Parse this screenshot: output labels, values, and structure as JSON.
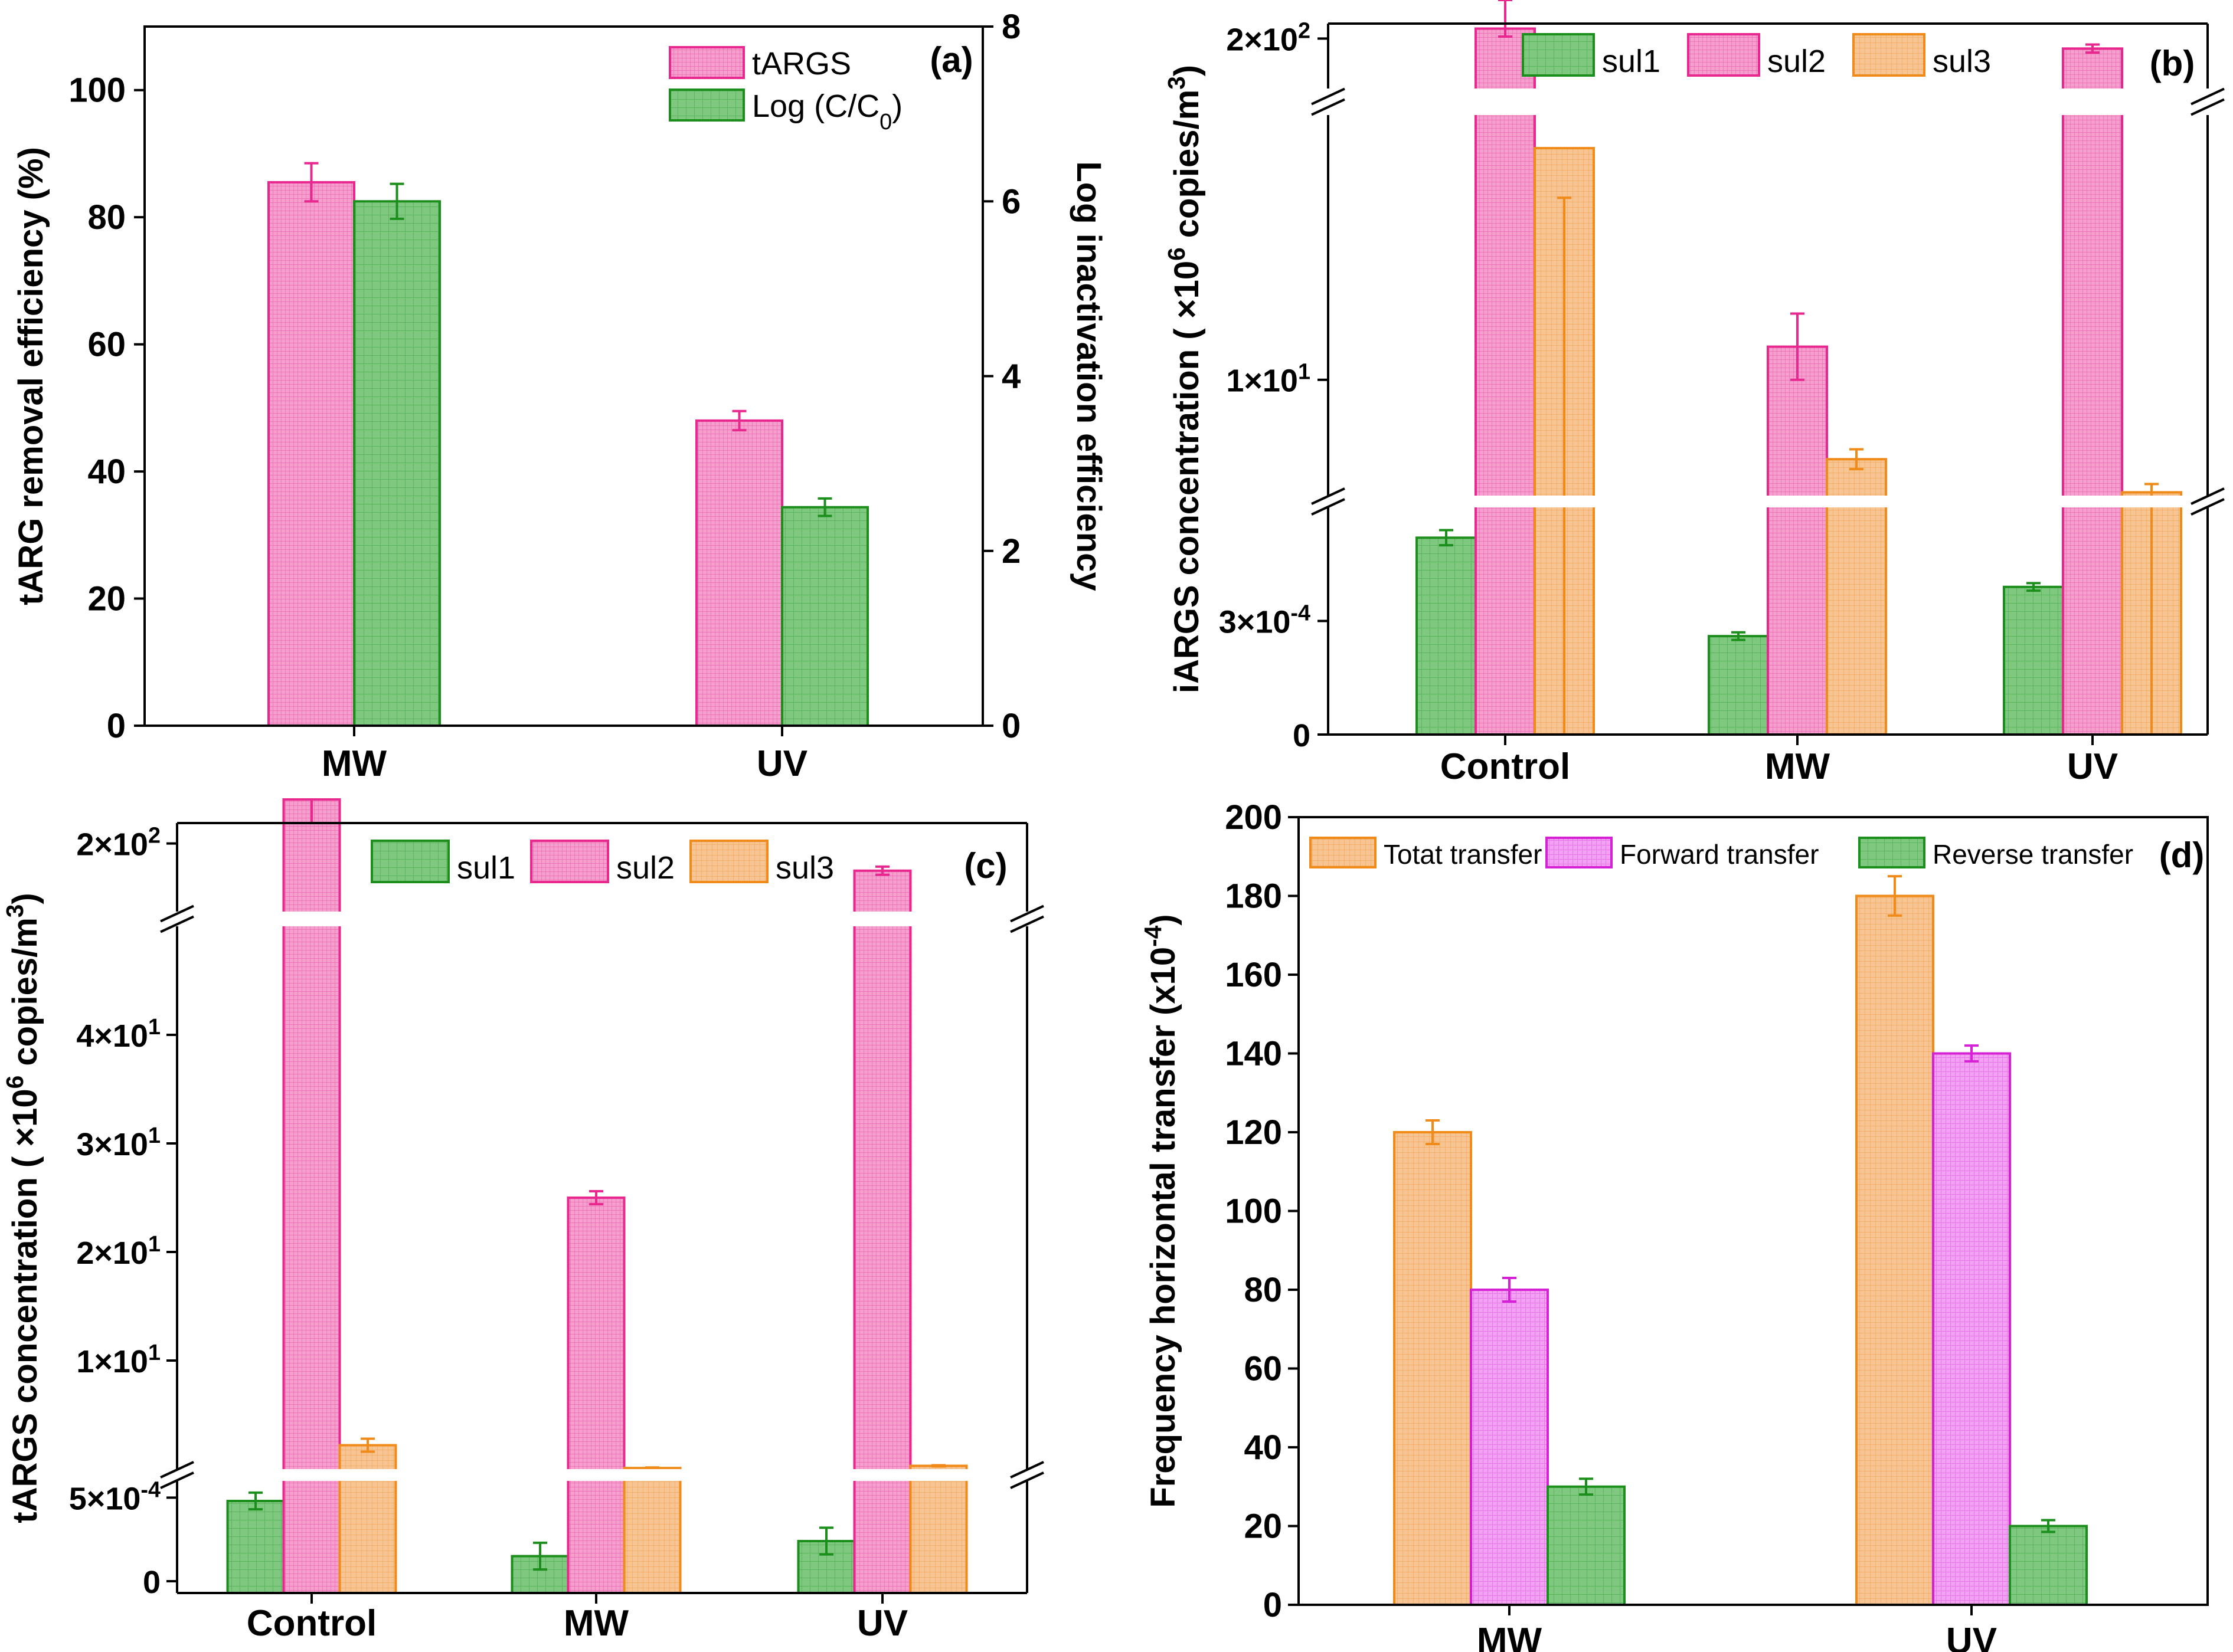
{
  "figure": {
    "panels": [
      "a",
      "b",
      "c",
      "d"
    ]
  },
  "colors": {
    "pink_fill": "#f59fce",
    "pink_edge": "#e8278f",
    "green_fill": "#7fc87f",
    "green_edge": "#1c8e1c",
    "orange_fill": "#f7c593",
    "orange_edge": "#f08a18",
    "magenta_fill": "#f3a2f3",
    "magenta_edge": "#d520d5"
  },
  "chart_data": [
    {
      "panel": "a",
      "label": "(a)",
      "type": "bar",
      "categories": [
        "MW",
        "UV"
      ],
      "ylabel": "tARG removal efficiency (%)",
      "y2label": "Log inactivation efficiency",
      "ylim": [
        0,
        110
      ],
      "y2lim": [
        0,
        8
      ],
      "yticks": [
        0,
        20,
        40,
        60,
        80,
        100
      ],
      "y2ticks": [
        0,
        2,
        4,
        6,
        8
      ],
      "series": [
        {
          "name": "tARGS",
          "axis": "left",
          "values": [
            85.5,
            48
          ],
          "errors": [
            3,
            1.5
          ],
          "fill": "#f59fce",
          "edge": "#e8278f"
        },
        {
          "name": "Log (C/C0)",
          "legend_main": "Log (C/C",
          "legend_sub": "0",
          "legend_end": ")",
          "axis": "right",
          "values": [
            6.0,
            2.5
          ],
          "errors": [
            0.2,
            0.1
          ],
          "fill": "#7fc87f",
          "edge": "#1c8e1c"
        }
      ]
    },
    {
      "panel": "b",
      "label": "(b)",
      "type": "bar",
      "categories": [
        "Control",
        "MW",
        "UV"
      ],
      "ylabel_main": "iARGS concentration ( ×10",
      "ylabel_sup": "6",
      "ylabel_end": " copies/m",
      "ylabel_sup2": "3",
      "ylabel_close": ")",
      "broken_axis": true,
      "yticks": [
        {
          "main": "0",
          "sup": "",
          "value": 0
        },
        {
          "main": "3×10",
          "sup": "-4",
          "value": 0.0003
        },
        {
          "main": "1×10",
          "sup": "1",
          "value": 10
        },
        {
          "main": "2×10",
          "sup": "2",
          "value": 200
        }
      ],
      "series": [
        {
          "name": "sul1",
          "values": [
            0.00052,
            0.00026,
            0.00039
          ],
          "errors": [
            2e-05,
            1e-05,
            1e-05
          ],
          "fill": "#7fc87f",
          "edge": "#1c8e1c"
        },
        {
          "name": "sul2",
          "values": [
            210,
            12,
            190
          ],
          "errors": [
            8,
            2,
            4
          ],
          "fill": "#f59fce",
          "edge": "#e8278f"
        },
        {
          "name": "sul3",
          "values": [
            24,
            5.2,
            3.2
          ],
          "errors": [
            3,
            0.6,
            0.5
          ],
          "fill": "#f7c593",
          "edge": "#f08a18"
        }
      ]
    },
    {
      "panel": "c",
      "label": "(c)",
      "type": "bar",
      "categories": [
        "Control",
        "MW",
        "UV"
      ],
      "ylabel_main": "tARGS concentration ( ×10",
      "ylabel_sup": "6",
      "ylabel_end": " copies/m",
      "ylabel_sup2": "3",
      "ylabel_close": ")",
      "broken_axis": true,
      "yticks": [
        {
          "main": "0",
          "sup": "",
          "value": 0
        },
        {
          "main": "5×10",
          "sup": "-4",
          "value": 0.0005
        },
        {
          "main": "1×10",
          "sup": "1",
          "value": 10
        },
        {
          "main": "2×10",
          "sup": "1",
          "value": 20
        },
        {
          "main": "3×10",
          "sup": "1",
          "value": 30
        },
        {
          "main": "4×10",
          "sup": "1",
          "value": 40
        },
        {
          "main": "2×10",
          "sup": "2",
          "value": 200
        }
      ],
      "series": [
        {
          "name": "sul1",
          "values": [
            0.00048,
            0.00015,
            0.00024
          ],
          "errors": [
            5e-05,
            8e-05,
            8e-05
          ],
          "fill": "#7fc87f",
          "edge": "#1c8e1c"
        },
        {
          "name": "sul2",
          "values": [
            220,
            25,
            180
          ],
          "errors": [
            5,
            0.6,
            3
          ],
          "fill": "#f59fce",
          "edge": "#e8278f"
        },
        {
          "name": "sul3",
          "values": [
            2.2,
            0.1,
            0.3
          ],
          "errors": [
            0.6,
            0.05,
            0.05
          ],
          "fill": "#f7c593",
          "edge": "#f08a18"
        }
      ]
    },
    {
      "panel": "d",
      "label": "(d)",
      "type": "bar",
      "categories": [
        "MW",
        "UV"
      ],
      "ylabel_main": "Frequency horizontal transfer (x10",
      "ylabel_sup": "-4",
      "ylabel_close": ")",
      "ylim": [
        0,
        200
      ],
      "yticks": [
        0,
        20,
        40,
        60,
        80,
        100,
        120,
        140,
        160,
        180,
        200
      ],
      "series": [
        {
          "name": "Totat transfer",
          "values": [
            120,
            180
          ],
          "errors": [
            3,
            5
          ],
          "fill": "#f7c593",
          "edge": "#f08a18"
        },
        {
          "name": "Forward transfer",
          "values": [
            80,
            140
          ],
          "errors": [
            3,
            2
          ],
          "fill": "#f3a2f3",
          "edge": "#d520d5"
        },
        {
          "name": "Reverse transfer",
          "values": [
            30,
            20
          ],
          "errors": [
            2,
            1.5
          ],
          "fill": "#7fc87f",
          "edge": "#1c8e1c"
        }
      ]
    }
  ]
}
